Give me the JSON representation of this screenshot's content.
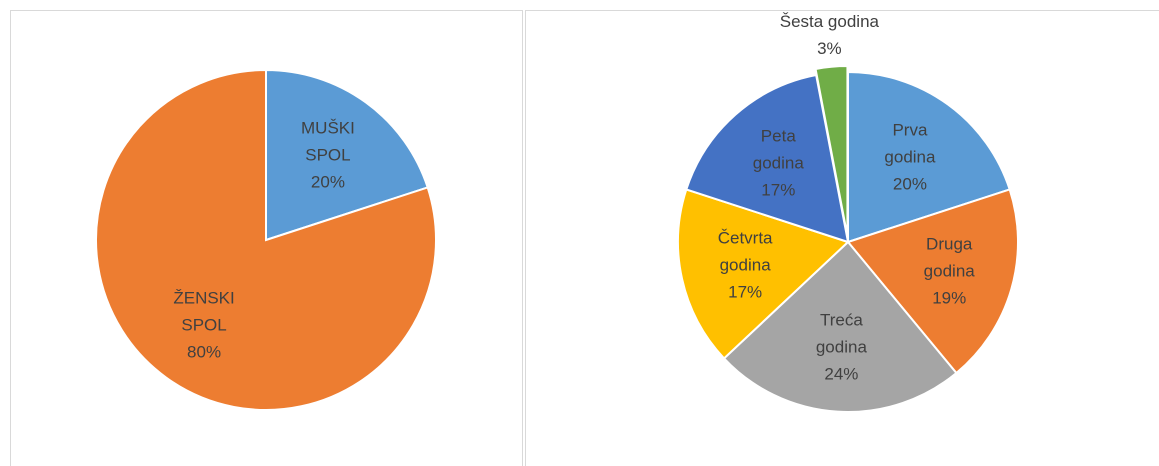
{
  "chart_data": [
    {
      "type": "pie",
      "categories": [
        "MUŠKI SPOL",
        "ŽENSKI SPOL"
      ],
      "values": [
        20,
        80
      ],
      "value_labels": [
        "20%",
        "80%"
      ],
      "colors": [
        "#5b9bd5",
        "#ed7d31"
      ]
    },
    {
      "type": "pie",
      "categories": [
        "Prva godina",
        "Druga godina",
        "Treća godina",
        "Četvrta godina",
        "Peta godina",
        "Šesta godina"
      ],
      "values": [
        20,
        19,
        24,
        17,
        17,
        3
      ],
      "value_labels": [
        "20%",
        "19%",
        "24%",
        "17%",
        "17%",
        "3%"
      ],
      "colors": [
        "#5b9bd5",
        "#ed7d31",
        "#a5a5a5",
        "#ffc000",
        "#4472c4",
        "#70ad47"
      ]
    }
  ]
}
